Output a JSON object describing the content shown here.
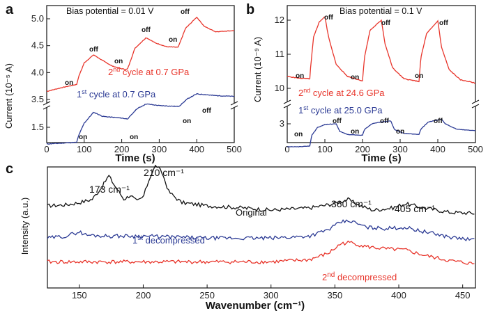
{
  "chart_data": [
    {
      "type": "line",
      "panel": "a",
      "title": "Bias potential = 0.01 V",
      "xlabel": "Time (s)",
      "ylabel": "Current (10⁻⁵ A)",
      "xlim": [
        0,
        500
      ],
      "x_ticks": [
        "0",
        "100",
        "200",
        "300",
        "400",
        "500"
      ],
      "y_ticks_upper": [
        "3.5",
        "4.0",
        "4.5",
        "5.0"
      ],
      "y_ticks_lower": [
        "1.5"
      ],
      "broken_axis": true,
      "series": [
        {
          "name": "2nd cycle at 0.7 GPa",
          "color": "#e8342a",
          "x": [
            0,
            40,
            80,
            85,
            100,
            125,
            150,
            175,
            200,
            215,
            220,
            235,
            265,
            290,
            320,
            350,
            355,
            370,
            400,
            420,
            450,
            500
          ],
          "y": [
            3.65,
            3.72,
            3.78,
            3.92,
            4.18,
            4.33,
            4.22,
            4.12,
            4.07,
            4.06,
            4.15,
            4.45,
            4.65,
            4.55,
            4.48,
            4.47,
            4.55,
            4.82,
            5.03,
            4.86,
            4.76,
            4.78
          ]
        },
        {
          "name": "1st cycle at 0.7 GPa",
          "color": "#2b3a94",
          "x": [
            0,
            40,
            80,
            85,
            100,
            125,
            150,
            200,
            215,
            220,
            240,
            265,
            300,
            350,
            355,
            375,
            400,
            450,
            500
          ],
          "y": [
            1.3,
            1.31,
            1.32,
            1.4,
            1.55,
            1.68,
            1.63,
            1.61,
            1.6,
            1.62,
            1.72,
            1.78,
            1.76,
            1.75,
            1.76,
            1.84,
            1.9,
            1.88,
            1.87
          ]
        }
      ],
      "legend": [
        {
          "text": "2",
          "sup": "nd",
          "rest": " cycle at 0.7 GPa"
        },
        {
          "text": "1",
          "sup": "st",
          "rest": " cycle at 0.7 GPa"
        }
      ],
      "annotations": [
        "on",
        "off",
        "on",
        "off",
        "on",
        "off",
        "on",
        "on",
        "on",
        "off"
      ]
    },
    {
      "type": "line",
      "panel": "b",
      "title": "Bias potential = 0.1 V",
      "xlabel": "Time (s)",
      "ylabel": "Current (10⁻⁹ A)",
      "xlim": [
        0,
        500
      ],
      "x_ticks": [
        "0",
        "100",
        "200",
        "300",
        "400",
        "500"
      ],
      "y_ticks_upper": [
        "10",
        "11",
        "12"
      ],
      "y_ticks_lower": [
        "3"
      ],
      "broken_axis": true,
      "series": [
        {
          "name": "2nd cycle at 24.6 GPa",
          "color": "#e8342a",
          "x": [
            0,
            30,
            60,
            62,
            70,
            85,
            100,
            110,
            130,
            160,
            190,
            200,
            205,
            220,
            250,
            260,
            280,
            310,
            340,
            350,
            355,
            370,
            400,
            410,
            430,
            460,
            490,
            500
          ],
          "y": [
            10.35,
            10.3,
            10.28,
            10.6,
            11.5,
            11.95,
            12.1,
            11.5,
            10.7,
            10.35,
            10.25,
            10.22,
            10.9,
            11.7,
            12.0,
            11.3,
            10.6,
            10.28,
            10.22,
            10.2,
            10.9,
            11.6,
            11.98,
            11.2,
            10.55,
            10.25,
            10.18,
            10.15
          ]
        },
        {
          "name": "1st cycle at 25.0 GPa",
          "color": "#2b3a94",
          "x": [
            0,
            30,
            60,
            65,
            80,
            100,
            130,
            140,
            160,
            200,
            205,
            225,
            250,
            275,
            285,
            310,
            350,
            355,
            375,
            410,
            420,
            450,
            500
          ],
          "y": [
            2.4,
            2.4,
            2.42,
            2.7,
            2.9,
            2.98,
            3.0,
            2.8,
            2.72,
            2.7,
            2.85,
            3.0,
            3.05,
            3.08,
            2.85,
            2.75,
            2.72,
            2.86,
            3.05,
            3.12,
            3.0,
            2.86,
            2.82
          ]
        }
      ],
      "legend": [
        {
          "text": "2",
          "sup": "nd",
          "rest": " cycle at 24.6 GPa"
        },
        {
          "text": "1",
          "sup": "st",
          "rest": " cycle at 25.0 GPa"
        }
      ],
      "annotations": [
        "on",
        "off",
        "on",
        "off",
        "on",
        "off",
        "on",
        "off",
        "on",
        "off",
        "on",
        "off"
      ]
    },
    {
      "type": "line",
      "panel": "c",
      "xlabel": "Wavenumber (cm⁻¹)",
      "ylabel": "Intensity (a.u.)",
      "xlim": [
        125,
        460
      ],
      "x_ticks": [
        "150",
        "200",
        "250",
        "300",
        "350",
        "400",
        "450"
      ],
      "series": [
        {
          "name": "Original",
          "color": "#111111",
          "x": [
            125,
            140,
            150,
            160,
            168,
            173,
            178,
            185,
            190,
            195,
            200,
            205,
            210,
            215,
            220,
            230,
            250,
            280,
            300,
            330,
            345,
            355,
            360,
            370,
            380,
            395,
            405,
            420,
            440,
            460
          ],
          "y": [
            0.62,
            0.63,
            0.65,
            0.68,
            0.8,
            0.9,
            0.8,
            0.68,
            0.72,
            0.66,
            0.7,
            0.88,
            1.0,
            0.92,
            0.75,
            0.65,
            0.62,
            0.6,
            0.58,
            0.6,
            0.63,
            0.66,
            0.68,
            0.62,
            0.58,
            0.6,
            0.64,
            0.6,
            0.56,
            0.55
          ]
        },
        {
          "name": "1st decompressed",
          "color": "#2b3a94",
          "x": [
            125,
            140,
            150,
            155,
            170,
            200,
            250,
            300,
            330,
            345,
            355,
            362,
            375,
            390,
            405,
            420,
            440,
            460
          ],
          "y": [
            0.32,
            0.34,
            0.38,
            0.35,
            0.34,
            0.34,
            0.32,
            0.32,
            0.34,
            0.4,
            0.47,
            0.48,
            0.42,
            0.41,
            0.42,
            0.38,
            0.33,
            0.3
          ]
        },
        {
          "name": "2nd decompressed",
          "color": "#e8342a",
          "x": [
            125,
            140,
            160,
            200,
            250,
            300,
            330,
            345,
            355,
            362,
            375,
            390,
            405,
            420,
            440,
            460
          ],
          "y": [
            0.1,
            0.1,
            0.1,
            0.1,
            0.1,
            0.1,
            0.12,
            0.18,
            0.27,
            0.28,
            0.24,
            0.22,
            0.21,
            0.16,
            0.11,
            0.08
          ]
        }
      ],
      "peak_labels": [
        "173 cm⁻¹",
        "210 cm⁻¹",
        "360 cm⁻¹",
        "405 cm⁻¹"
      ],
      "curve_labels": [
        {
          "text": "Original"
        },
        {
          "text": "1",
          "sup": "st",
          "rest": " decompressed"
        },
        {
          "text": "2",
          "sup": "nd",
          "rest": " decompressed"
        }
      ]
    }
  ],
  "colors": {
    "red": "#e8342a",
    "blue": "#2b3a94",
    "black": "#111111"
  }
}
